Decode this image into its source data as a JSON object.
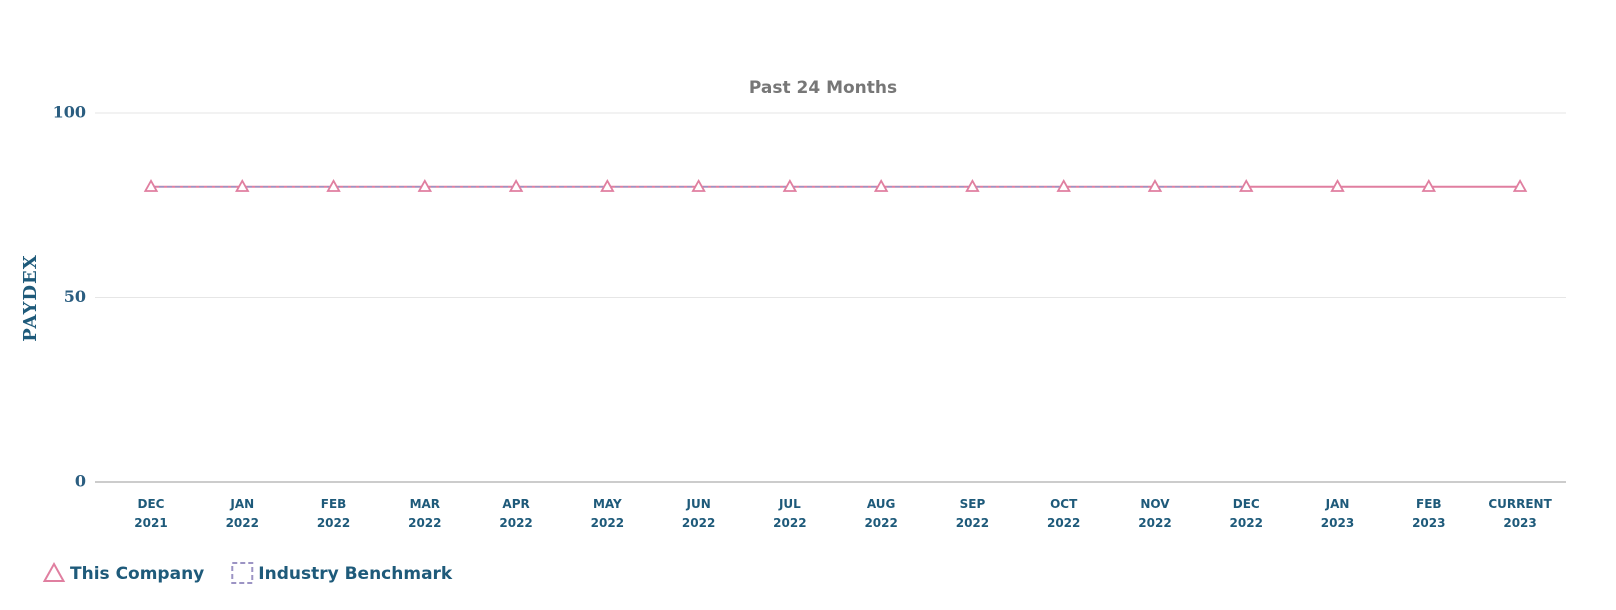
{
  "chart_data": {
    "type": "line",
    "title": "Past 24 Months",
    "y_label": "PAYDEX",
    "categories": [
      "DEC 2021",
      "JAN 2022",
      "FEB 2022",
      "MAR 2022",
      "APR 2022",
      "MAY 2022",
      "JUN 2022",
      "JUL 2022",
      "AUG 2022",
      "SEP 2022",
      "OCT 2022",
      "NOV 2022",
      "DEC 2022",
      "JAN 2023",
      "FEB 2023",
      "CURRENT 2023"
    ],
    "series": [
      {
        "name": "This Company",
        "color": "#e07fa0",
        "marker": "triangle",
        "values": [
          80,
          80,
          80,
          80,
          80,
          80,
          80,
          80,
          80,
          80,
          80,
          80,
          80,
          80,
          80,
          80
        ]
      },
      {
        "name": "Industry Benchmark",
        "color": "#9c94c4",
        "dashed": true,
        "values": [
          80,
          80,
          80,
          80,
          80,
          80,
          80,
          80,
          80,
          80,
          80,
          80,
          80,
          null,
          null,
          null
        ]
      }
    ],
    "ylim": [
      0,
      100
    ],
    "yticks": [
      0,
      50,
      100
    ],
    "grid": true
  }
}
